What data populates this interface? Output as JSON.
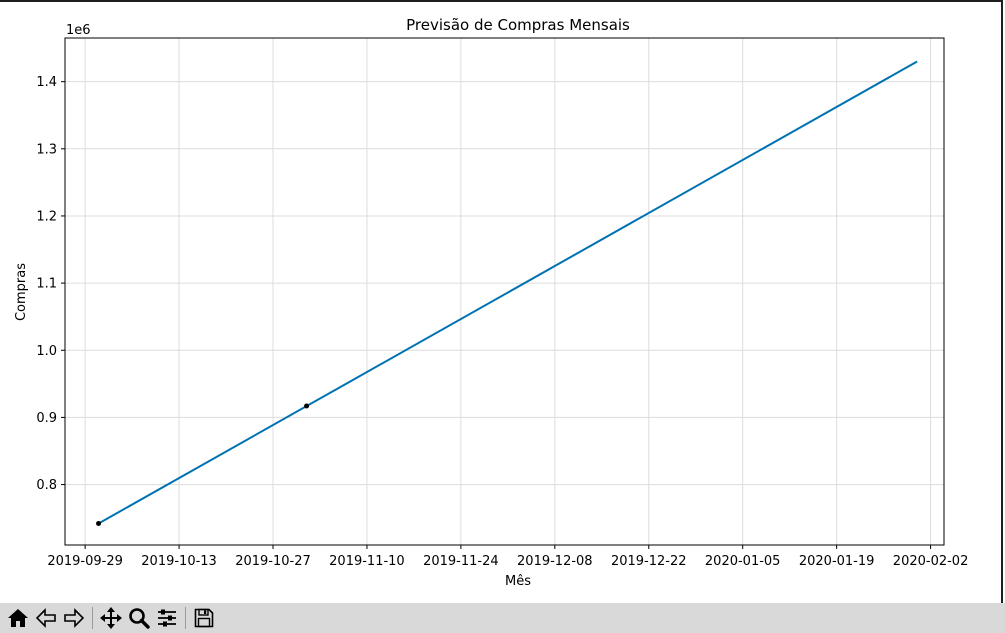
{
  "chart_data": {
    "type": "line",
    "title": "Previsão de Compras Mensais",
    "xlabel": "Mês",
    "ylabel": "Compras",
    "y_offset_label": "1e6",
    "x_type": "date",
    "xlim": [
      "2019-09-26",
      "2020-02-04"
    ],
    "ylim": [
      0.71,
      1.465
    ],
    "y_ticks": [
      0.8,
      0.9,
      1.0,
      1.1,
      1.2,
      1.3,
      1.4
    ],
    "y_tick_labels": [
      "0.8",
      "0.9",
      "1.0",
      "1.1",
      "1.2",
      "1.3",
      "1.4"
    ],
    "x_ticks": [
      "2019-09-29",
      "2019-10-13",
      "2019-10-27",
      "2019-11-10",
      "2019-11-24",
      "2019-12-08",
      "2019-12-22",
      "2020-01-05",
      "2020-01-19",
      "2020-02-02"
    ],
    "grid": true,
    "series": [
      {
        "kind": "line",
        "color": "#0072b2",
        "x": [
          "2019-10-01",
          "2020-01-31"
        ],
        "y": [
          0.742,
          1.43
        ]
      },
      {
        "kind": "points",
        "color": "#000000",
        "x": [
          "2019-10-01",
          "2019-11-01"
        ],
        "y": [
          0.742,
          0.917
        ]
      }
    ]
  },
  "toolbar": {
    "buttons": [
      {
        "icon": "home-icon",
        "glyph": "⌂"
      },
      {
        "icon": "back-arrow-icon",
        "glyph": "⇐"
      },
      {
        "icon": "forward-arrow-icon",
        "glyph": "⇒"
      },
      {
        "icon": "pan-icon",
        "glyph": "✥"
      },
      {
        "icon": "zoom-icon",
        "glyph": "🔍"
      },
      {
        "icon": "configure-subplots-icon",
        "glyph": "☰"
      },
      {
        "icon": "save-icon",
        "glyph": "💾"
      }
    ]
  }
}
